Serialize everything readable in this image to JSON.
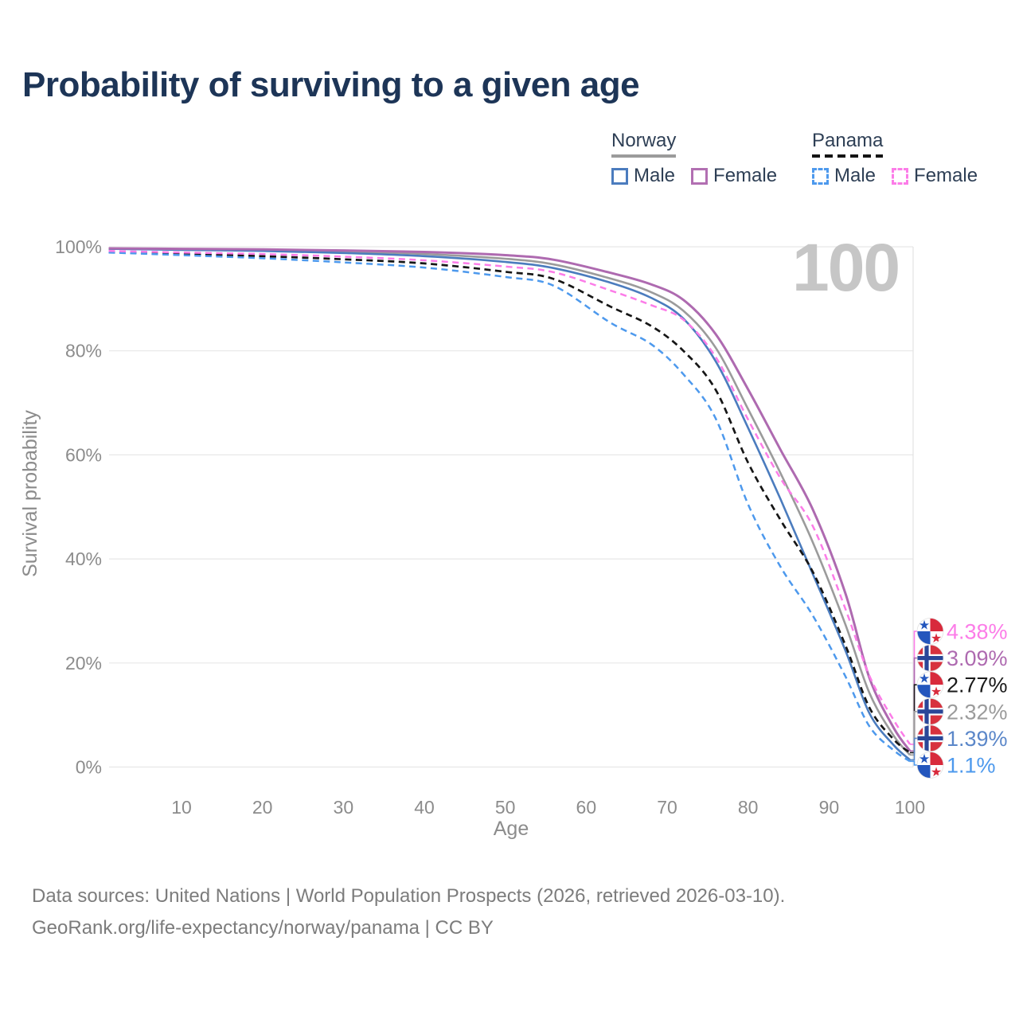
{
  "title": "Probability of surviving to a given age",
  "watermark": "100",
  "legend": {
    "groups": [
      {
        "label": "Norway",
        "rule_style": "solid",
        "rule_color": "#9b9b9b",
        "items": [
          {
            "label": "Male",
            "style": "solid",
            "color": "#4b7cbe"
          },
          {
            "label": "Female",
            "style": "solid",
            "color": "#b26fb2"
          }
        ]
      },
      {
        "label": "Panama",
        "rule_style": "dashed",
        "rule_color": "#141414",
        "items": [
          {
            "label": "Male",
            "style": "dashed",
            "color": "#4d99ed"
          },
          {
            "label": "Female",
            "style": "dashed",
            "color": "#fc7ce8"
          }
        ]
      }
    ]
  },
  "footer": {
    "line1": "Data sources: United Nations | World Population Prospects (2026, retrieved 2026-03-10).",
    "line2": "GeoRank.org/life-expectancy/norway/panama | CC BY"
  },
  "chart_data": {
    "type": "line",
    "title": "Probability of surviving to a given age",
    "xlabel": "Age",
    "ylabel": "Survival probability",
    "xlim": [
      1,
      100
    ],
    "ylim": [
      0,
      100
    ],
    "grid": "horizontal",
    "x_ticks": [
      10,
      20,
      30,
      40,
      50,
      60,
      70,
      80,
      90,
      100
    ],
    "y_ticks": [
      "0%",
      "20%",
      "40%",
      "60%",
      "80%",
      "100%"
    ],
    "age_watermark": "100",
    "ages": [
      1,
      10,
      20,
      30,
      40,
      50,
      56,
      63,
      68,
      72,
      76,
      80,
      84,
      88,
      92,
      95,
      98,
      100
    ],
    "series": [
      {
        "name": "Norway",
        "color": "#9b9b9b",
        "dash": false,
        "values": [
          99.6,
          99.5,
          99.4,
          99.1,
          98.6,
          97.7,
          96.6,
          93.9,
          91.3,
          87.7,
          80.6,
          68.8,
          56.5,
          43.2,
          27.5,
          14.2,
          6.0,
          2.32
        ]
      },
      {
        "name": "Norway Male",
        "color": "#4b7cbe",
        "dash": false,
        "values": [
          99.6,
          99.4,
          99.2,
          98.8,
          98.2,
          97.1,
          95.9,
          93.1,
          90.2,
          86.2,
          78.0,
          65.2,
          51.5,
          37.1,
          22.5,
          10.3,
          4.2,
          1.39
        ]
      },
      {
        "name": "Norway Female",
        "color": "#ae6ab0",
        "dash": false,
        "values": [
          99.7,
          99.6,
          99.5,
          99.3,
          99.0,
          98.4,
          97.5,
          95.0,
          92.8,
          89.8,
          83.2,
          72.6,
          61.0,
          49.5,
          33.5,
          17.1,
          7.5,
          3.09
        ]
      },
      {
        "name": "Panama",
        "color": "#161616",
        "dash": true,
        "values": [
          99.0,
          98.6,
          98.2,
          97.6,
          96.8,
          95.2,
          93.8,
          88.5,
          84.8,
          80.0,
          72.5,
          58.5,
          47.5,
          37.5,
          23.5,
          11.4,
          5.3,
          2.77
        ]
      },
      {
        "name": "Panama Male",
        "color": "#4d99ed",
        "dash": true,
        "values": [
          98.9,
          98.4,
          97.8,
          97.0,
          96.0,
          94.2,
          92.5,
          85.4,
          81.3,
          75.5,
          67.0,
          50.5,
          38.5,
          29.1,
          17.5,
          7.8,
          3.2,
          1.1
        ]
      },
      {
        "name": "Panama Female",
        "color": "#fc7ce8",
        "dash": true,
        "values": [
          99.2,
          98.9,
          98.6,
          98.1,
          97.4,
          96.2,
          95.1,
          91.6,
          88.8,
          86.0,
          78.8,
          66.8,
          55.5,
          46.3,
          30.5,
          17.5,
          9.0,
          4.38
        ]
      }
    ],
    "end_labels": [
      {
        "series": "Panama Female",
        "flag": "panama",
        "value": "4.38%",
        "end": 4.38,
        "color": "#fc7ce8"
      },
      {
        "series": "Norway Female",
        "flag": "norway",
        "value": "3.09%",
        "end": 3.09,
        "color": "#ae6ab0"
      },
      {
        "series": "Panama",
        "flag": "panama",
        "value": "2.77%",
        "end": 2.77,
        "color": "#1a1a1a"
      },
      {
        "series": "Norway",
        "flag": "norway",
        "value": "2.32%",
        "end": 2.32,
        "color": "#9b9b9b"
      },
      {
        "series": "Norway Male",
        "flag": "norway",
        "value": "1.39%",
        "end": 1.39,
        "color": "#5b87c9"
      },
      {
        "series": "Panama Male",
        "flag": "panama",
        "value": "1.1%",
        "end": 1.1,
        "color": "#4d99ed"
      }
    ]
  }
}
